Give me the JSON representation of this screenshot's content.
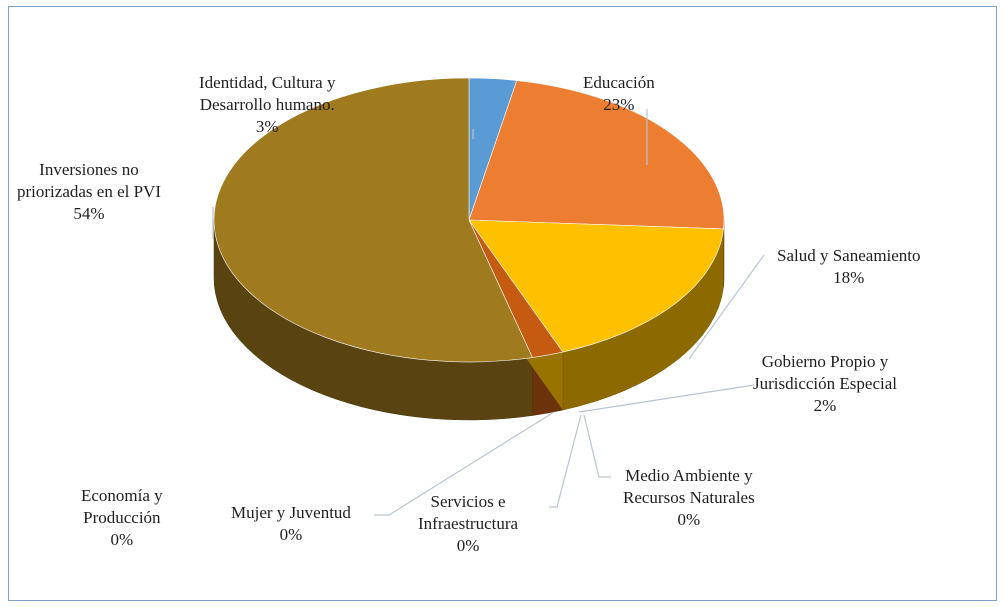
{
  "chart_data": {
    "type": "pie",
    "style": "3d",
    "legend": "none",
    "slices": [
      {
        "name": "Identidad, Cultura y",
        "name2": "Desarrollo humano.",
        "value": 3,
        "pct": "3%",
        "color": "#5b9bd5"
      },
      {
        "name": "Educación",
        "name2": "",
        "value": 23,
        "pct": "23%",
        "color": "#ed7d31"
      },
      {
        "name": "Salud y Saneamiento",
        "name2": "",
        "value": 18,
        "pct": "18%",
        "color": "#ffc000"
      },
      {
        "name": "Gobierno Propio y",
        "name2": "Jurisdicción Especial",
        "value": 2,
        "pct": "2%",
        "color": "#c55a11"
      },
      {
        "name": "Medio Ambiente y",
        "name2": "Recursos Naturales",
        "value": 0,
        "pct": "0%",
        "color": "#4472c4"
      },
      {
        "name": "Servicios e",
        "name2": "Infraestructura",
        "value": 0,
        "pct": "0%",
        "color": "#70ad47"
      },
      {
        "name": "Mujer y Juventud",
        "name2": "",
        "value": 0,
        "pct": "0%",
        "color": "#264478"
      },
      {
        "name": "Economía y",
        "name2": "Producción",
        "value": 0,
        "pct": "0%",
        "color": "#9e480e"
      },
      {
        "name": "Inversiones no",
        "name2": "priorizadas en el PVI",
        "value": 54,
        "pct": "54%",
        "color": "#a07a1e"
      }
    ]
  }
}
